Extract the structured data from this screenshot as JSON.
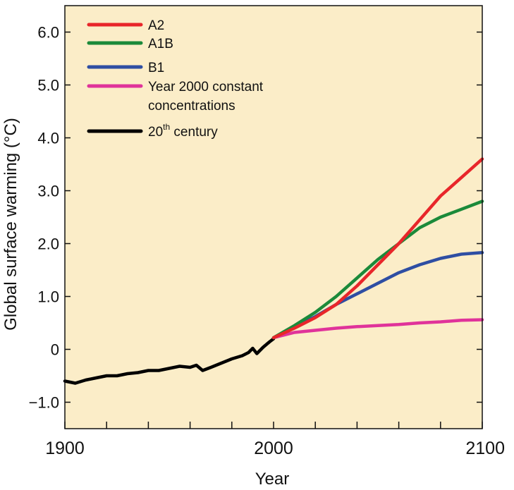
{
  "chart_data": {
    "type": "line",
    "xlabel": "Year",
    "ylabel": "Global surface warming (°C)",
    "xlim": [
      1900,
      2100
    ],
    "ylim": [
      -1.5,
      6.5
    ],
    "x_tick_labels": [
      "1900",
      "2000",
      "2100"
    ],
    "x_minor_ticks": [
      1920,
      1940,
      1960,
      1980,
      2020,
      2040,
      2060,
      2080
    ],
    "y_ticks": [
      -1.0,
      0,
      1.0,
      2.0,
      3.0,
      4.0,
      5.0,
      6.0
    ],
    "y_tick_labels": [
      "−1.0",
      "0",
      "1.0",
      "2.0",
      "3.0",
      "4.0",
      "5.0",
      "6.0"
    ],
    "grid": false,
    "background": "#fbedc8",
    "legend_position": "top-left",
    "legend": [
      {
        "label": "A2",
        "color": "#e8262a"
      },
      {
        "label": "A1B",
        "color": "#1b8a3a"
      },
      {
        "label": "B1",
        "color": "#2e4ea3"
      },
      {
        "label": "Year 2000 constant",
        "label2": "concentrations",
        "color": "#e0339a"
      },
      {
        "label": "20",
        "sup": "th",
        "suffix": " century",
        "color": "#000000"
      }
    ],
    "series": [
      {
        "name": "20th century",
        "color": "#000000",
        "x": [
          1900,
          1905,
          1910,
          1915,
          1920,
          1925,
          1930,
          1935,
          1940,
          1945,
          1950,
          1955,
          1960,
          1963,
          1966,
          1970,
          1975,
          1980,
          1985,
          1988,
          1990,
          1992,
          1995,
          1998,
          2000
        ],
        "y": [
          -0.6,
          -0.64,
          -0.58,
          -0.54,
          -0.5,
          -0.5,
          -0.46,
          -0.44,
          -0.4,
          -0.4,
          -0.36,
          -0.32,
          -0.34,
          -0.3,
          -0.4,
          -0.34,
          -0.26,
          -0.18,
          -0.12,
          -0.06,
          0.02,
          -0.08,
          0.04,
          0.14,
          0.2
        ]
      },
      {
        "name": "A2",
        "color": "#e8262a",
        "x": [
          2000,
          2010,
          2020,
          2030,
          2040,
          2050,
          2060,
          2070,
          2080,
          2090,
          2100
        ],
        "y": [
          0.22,
          0.4,
          0.6,
          0.85,
          1.2,
          1.6,
          2.0,
          2.45,
          2.9,
          3.25,
          3.6
        ]
      },
      {
        "name": "A1B",
        "color": "#1b8a3a",
        "x": [
          2000,
          2010,
          2020,
          2030,
          2040,
          2050,
          2060,
          2070,
          2080,
          2090,
          2100
        ],
        "y": [
          0.22,
          0.45,
          0.7,
          1.0,
          1.35,
          1.7,
          2.0,
          2.3,
          2.5,
          2.65,
          2.8
        ]
      },
      {
        "name": "B1",
        "color": "#2e4ea3",
        "x": [
          2000,
          2010,
          2020,
          2030,
          2040,
          2050,
          2060,
          2070,
          2080,
          2090,
          2100
        ],
        "y": [
          0.22,
          0.42,
          0.62,
          0.85,
          1.05,
          1.25,
          1.45,
          1.6,
          1.72,
          1.8,
          1.83
        ]
      },
      {
        "name": "Year 2000 constant concentrations",
        "color": "#e0339a",
        "x": [
          2000,
          2010,
          2020,
          2030,
          2040,
          2050,
          2060,
          2070,
          2080,
          2090,
          2100
        ],
        "y": [
          0.22,
          0.32,
          0.36,
          0.4,
          0.43,
          0.45,
          0.47,
          0.5,
          0.52,
          0.55,
          0.56
        ]
      }
    ]
  }
}
